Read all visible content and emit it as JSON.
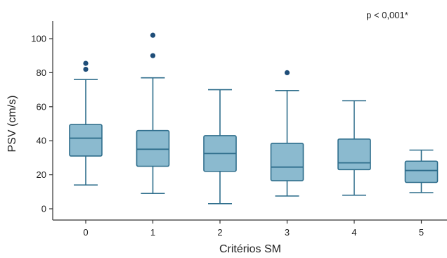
{
  "chart_data": {
    "type": "box",
    "xlabel": "Critérios SM",
    "ylabel": "PSV (cm/s)",
    "annotation": "p < 0,001*",
    "ylim": [
      -8,
      110
    ],
    "yticks": [
      0,
      20,
      40,
      60,
      80,
      100
    ],
    "grid": false,
    "colors": {
      "box_fill": "#8bbacf",
      "box_stroke": "#2f6e8c",
      "outlier": "#1f4e79",
      "axis": "#333333"
    },
    "categories": [
      "0",
      "1",
      "2",
      "3",
      "4",
      "5"
    ],
    "boxes": [
      {
        "category": "0",
        "whisker_low": 14,
        "q1": 31,
        "median": 41.5,
        "q3": 49.5,
        "whisker_high": 76,
        "outliers": [
          82,
          85.5
        ]
      },
      {
        "category": "1",
        "whisker_low": 9,
        "q1": 25,
        "median": 35,
        "q3": 46,
        "whisker_high": 77,
        "outliers": [
          90,
          102
        ]
      },
      {
        "category": "2",
        "whisker_low": 3,
        "q1": 22,
        "median": 32.5,
        "q3": 43,
        "whisker_high": 70,
        "outliers": []
      },
      {
        "category": "3",
        "whisker_low": 7.5,
        "q1": 16.5,
        "median": 24.5,
        "q3": 38.5,
        "whisker_high": 69.5,
        "outliers": [
          80
        ]
      },
      {
        "category": "4",
        "whisker_low": 8,
        "q1": 23,
        "median": 27,
        "q3": 41,
        "whisker_high": 63.5,
        "outliers": []
      },
      {
        "category": "5",
        "whisker_low": 9.5,
        "q1": 15.5,
        "median": 22.5,
        "q3": 28,
        "whisker_high": 34.5,
        "outliers": []
      }
    ]
  }
}
